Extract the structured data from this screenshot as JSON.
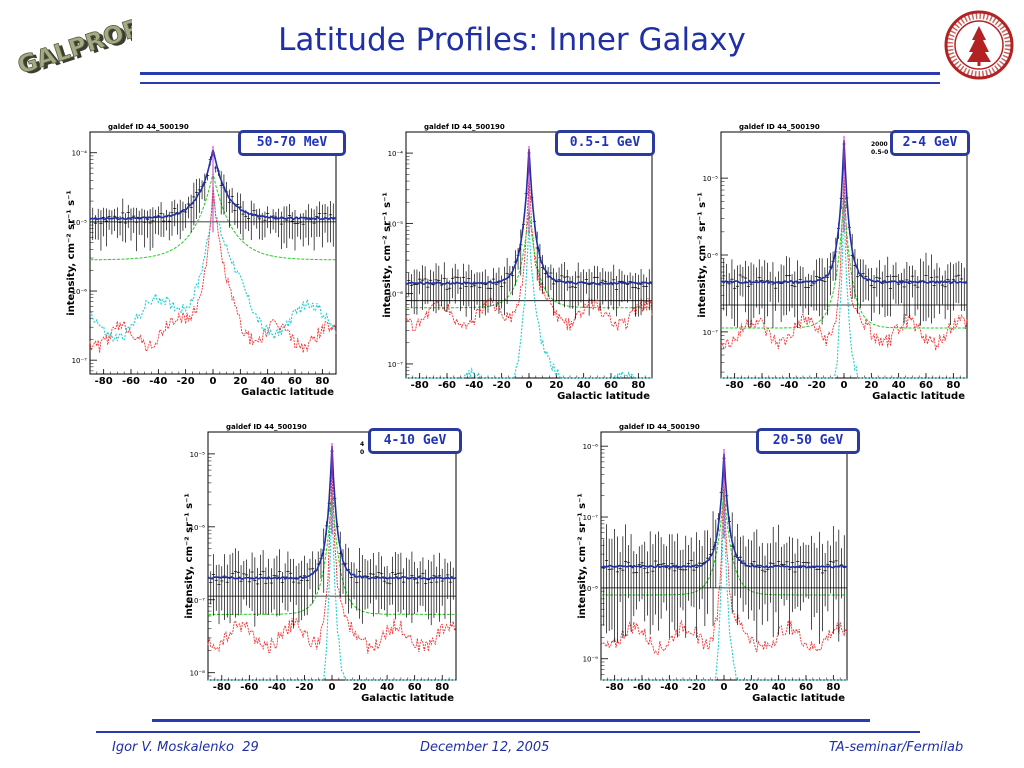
{
  "slide": {
    "title": "Latitude Profiles: Inner Galaxy",
    "logo_left_text": "GALPROP",
    "title_color": "#1f2fa6",
    "rule_color": "#2a3ab0"
  },
  "footer": {
    "author": "Igor V. Moskalenko",
    "page": "29",
    "date": "December 12, 2005",
    "venue": "TA-seminar/Fermilab"
  },
  "series_colors": {
    "total": "#1f2fa6",
    "pion": "#22cc22",
    "bremss": "#ee3333",
    "ic": "#22cccc",
    "data": "#000000"
  },
  "chart_data": [
    {
      "type": "line",
      "panel_title": "galdef ID 44_500190",
      "energy_label": "50-70 MeV",
      "xlabel": "Galactic latitude",
      "ylabel": "intensity, cm⁻² sr⁻¹ s⁻¹",
      "xlim": [
        -90,
        90
      ],
      "log_y": true,
      "ylim_exp": [
        -7.2,
        -3.7
      ],
      "yticks": [
        "10⁻⁴",
        "10⁻⁵",
        "10⁻⁶",
        "10⁻⁷"
      ],
      "ytick_exps": [
        -4,
        -5,
        -6,
        -7
      ],
      "xticks": [
        -80,
        -60,
        -40,
        -20,
        0,
        20,
        40,
        60,
        80
      ],
      "lg": {
        "bg": -5.0,
        "total_base": -4.95,
        "total_peak": -3.95,
        "total_w": 10,
        "pion_base": -5.55,
        "pion_peak": -4.3,
        "pion_w": 14,
        "ic_base": -6.45,
        "ic_peak": -4.7,
        "ic_w": 14,
        "br_base": -6.65,
        "br_peak": -4.55,
        "br_w": 9
      },
      "errs": 0.35
    },
    {
      "type": "line",
      "panel_title": "galdef ID 44_500190",
      "energy_label": "0.5-1 GeV",
      "xlabel": "Galactic latitude",
      "ylabel": "intensity, cm⁻² sr⁻¹ s⁻¹",
      "xlim": [
        -90,
        90
      ],
      "log_y": true,
      "ylim_exp": [
        -7.2,
        -3.7
      ],
      "yticks": [
        "10⁻⁴",
        "10⁻⁵",
        "10⁻⁶",
        "10⁻⁷"
      ],
      "ytick_exps": [
        -4,
        -5,
        -6,
        -7
      ],
      "xticks": [
        -80,
        -60,
        -40,
        -20,
        0,
        20,
        40,
        60,
        80
      ],
      "lg": {
        "bg": -6.1,
        "total_base": -5.85,
        "total_peak": -3.95,
        "total_w": 5,
        "pion_base": -6.2,
        "pion_peak": -4.8,
        "pion_w": 7,
        "ic_base": -7.4,
        "ic_peak": -5.0,
        "ic_w": 6,
        "br_base": -6.3,
        "br_peak": -4.3,
        "br_w": 4
      },
      "errs": 0.4
    },
    {
      "type": "line",
      "panel_title": "galdef ID 44_500190",
      "energy_label": "2-4 GeV",
      "corner_text": [
        "2000",
        "0.5-0"
      ],
      "xlabel": "Galactic latitude",
      "ylabel": "intensity, cm⁻² sr⁻¹ s⁻¹",
      "xlim": [
        -90,
        90
      ],
      "log_y": true,
      "ylim_exp": [
        -7.6,
        -4.4
      ],
      "yticks": [
        "10⁻⁵",
        "10⁻⁶",
        "10⁻⁷"
      ],
      "ytick_exps": [
        -5,
        -6,
        -7
      ],
      "xticks": [
        -80,
        -60,
        -40,
        -20,
        0,
        20,
        40,
        60,
        80
      ],
      "lg": {
        "bg": -6.65,
        "total_base": -6.35,
        "total_peak": -4.5,
        "total_w": 4,
        "pion_base": -6.95,
        "pion_peak": -5.2,
        "pion_w": 6,
        "ic_base": -8.0,
        "ic_peak": -5.3,
        "ic_w": 4,
        "br_base": -7.0,
        "br_peak": -4.8,
        "br_w": 3
      },
      "errs": 0.5
    },
    {
      "type": "line",
      "panel_title": "galdef ID 44_500190",
      "energy_label": "4-10 GeV",
      "corner_text": [
        "4",
        "0"
      ],
      "xlabel": "Galactic latitude",
      "ylabel": "intensity, cm⁻² sr⁻¹ s⁻¹",
      "xlim": [
        -90,
        90
      ],
      "log_y": true,
      "ylim_exp": [
        -8.1,
        -4.7
      ],
      "yticks": [
        "10⁻⁵",
        "10⁻⁶",
        "10⁻⁷",
        "10⁻⁸"
      ],
      "ytick_exps": [
        -5,
        -6,
        -7,
        -8
      ],
      "xticks": [
        -80,
        -60,
        -40,
        -20,
        0,
        20,
        40,
        60,
        80
      ],
      "lg": {
        "bg": -6.95,
        "total_base": -6.7,
        "total_peak": -4.9,
        "total_w": 4,
        "pion_base": -7.2,
        "pion_peak": -5.5,
        "pion_w": 6,
        "ic_base": -8.6,
        "ic_peak": -5.6,
        "ic_w": 4,
        "br_base": -7.5,
        "br_peak": -5.1,
        "br_w": 3
      },
      "errs": 0.55
    },
    {
      "type": "line",
      "panel_title": "galdef ID 44_500190",
      "energy_label": "20-50 GeV",
      "xlabel": "Galactic latitude",
      "ylabel": "intensity, cm⁻² sr⁻¹ s⁻¹",
      "xlim": [
        -90,
        90
      ],
      "log_y": true,
      "ylim_exp": [
        -9.3,
        -5.8
      ],
      "yticks": [
        "10⁻⁶",
        "10⁻⁷",
        "10⁻⁸",
        "10⁻⁹"
      ],
      "ytick_exps": [
        -6,
        -7,
        -8,
        -9
      ],
      "xticks": [
        -80,
        -60,
        -40,
        -20,
        0,
        20,
        40,
        60,
        80
      ],
      "lg": {
        "bg": -8.0,
        "total_base": -7.7,
        "total_peak": -6.1,
        "total_w": 4,
        "pion_base": -8.1,
        "pion_peak": -6.6,
        "pion_w": 6,
        "ic_base": -9.8,
        "ic_peak": -6.7,
        "ic_w": 4,
        "br_base": -8.7,
        "br_peak": -6.3,
        "br_w": 3
      },
      "errs": 0.9
    }
  ]
}
